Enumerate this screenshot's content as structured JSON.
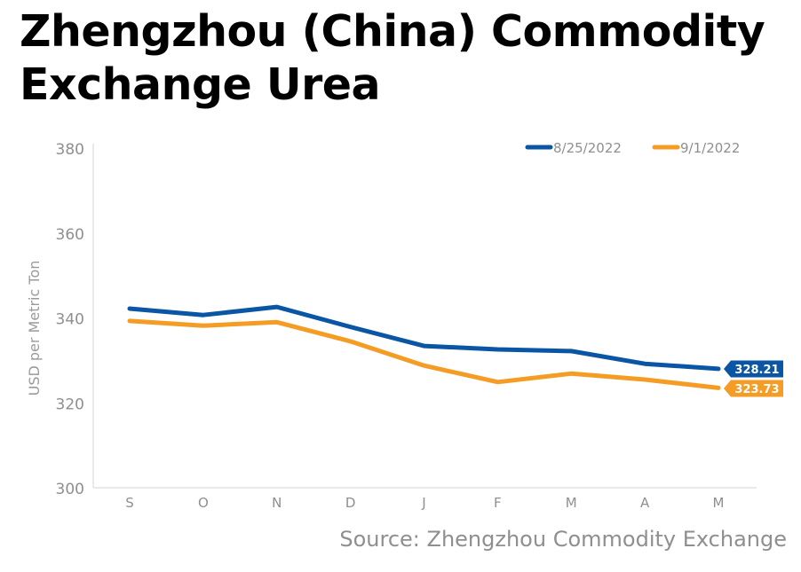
{
  "header": {
    "title": "Zhengzhou (China) Commodity Exchange Urea"
  },
  "footer": {
    "source": "Source: Zhengzhou Commodity Exchange"
  },
  "chart_data": {
    "type": "line",
    "title": "Zhengzhou (China) Commodity Exchange Urea",
    "xlabel": "",
    "ylabel": "USD per Metric Ton",
    "categories": [
      "S",
      "O",
      "N",
      "D",
      "J",
      "F",
      "M",
      "A",
      "M"
    ],
    "ylim": [
      300,
      380
    ],
    "yticks": [
      "300",
      "320",
      "340",
      "360",
      "380"
    ],
    "grid": false,
    "legend_position": "top-right",
    "series": [
      {
        "name": "8/25/2022",
        "color": "#0a56a4",
        "values": [
          342.4,
          340.9,
          342.8,
          338.1,
          333.6,
          332.8,
          332.4,
          329.4,
          328.21
        ],
        "end_label": "328.21"
      },
      {
        "name": "9/1/2022",
        "color": "#f59c25",
        "values": [
          339.5,
          338.4,
          339.2,
          334.7,
          329.0,
          325.1,
          327.1,
          325.7,
          323.73
        ],
        "end_label": "323.73"
      }
    ]
  }
}
